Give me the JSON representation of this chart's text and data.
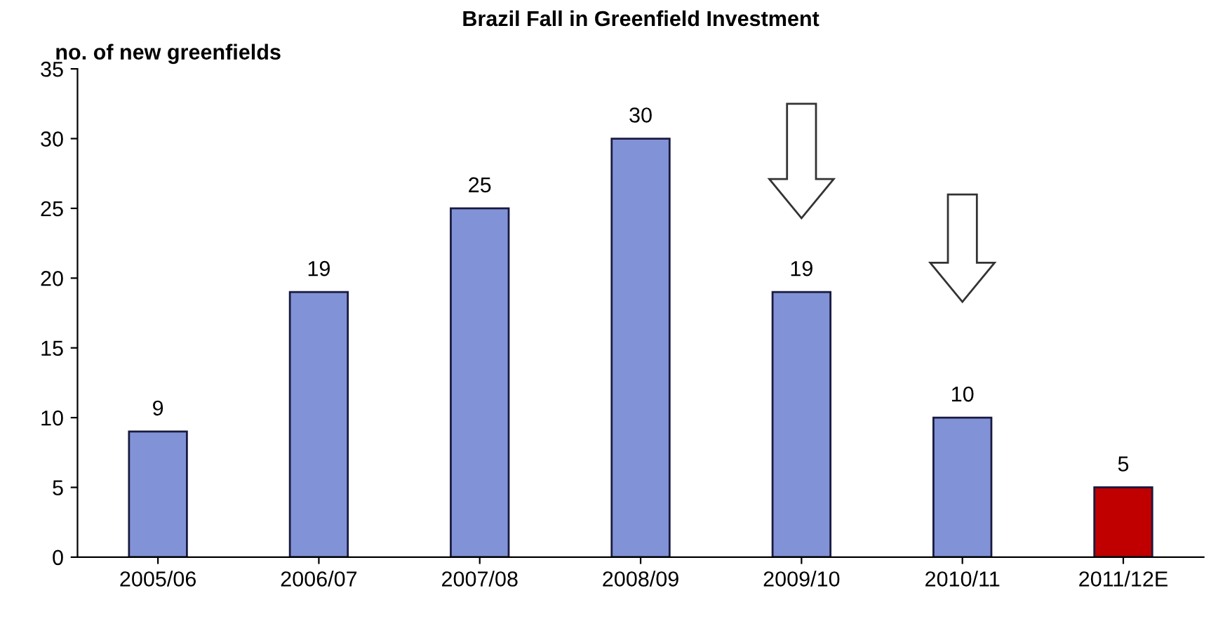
{
  "chart_data": {
    "type": "bar",
    "title": "Brazil Fall in Greenfield Investment",
    "ylabel": "no. of new greenfields",
    "categories": [
      "2005/06",
      "2006/07",
      "2007/08",
      "2008/09",
      "2009/10",
      "2010/11",
      "2011/12E"
    ],
    "values": [
      9,
      19,
      25,
      30,
      19,
      10,
      5
    ],
    "colors": [
      "#8193d6",
      "#8193d6",
      "#8193d6",
      "#8193d6",
      "#8193d6",
      "#8193d6",
      "#c00000"
    ],
    "ylim": [
      0,
      35
    ],
    "yticks": [
      0,
      5,
      10,
      15,
      20,
      25,
      30,
      35
    ],
    "grid": false,
    "data_labels": true
  }
}
